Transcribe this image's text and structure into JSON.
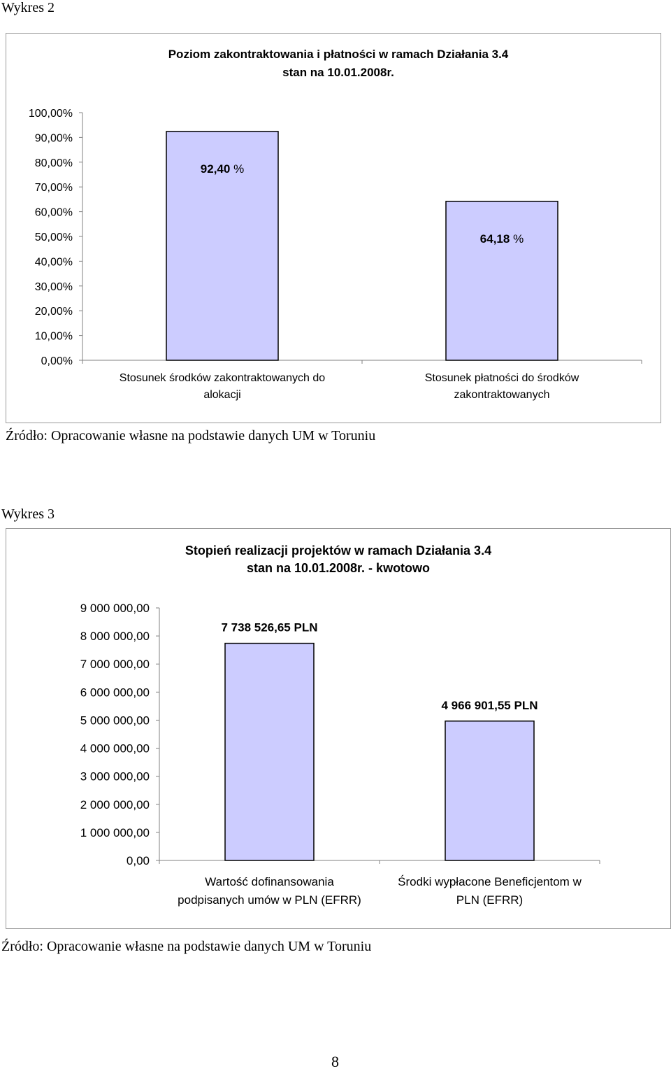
{
  "colors": {
    "bar_fill": "#ccccff",
    "bar_stroke": "#000000",
    "axis": "#808080",
    "frame": "#9a9a9a"
  },
  "charts": [
    {
      "caption": "Wykres 2",
      "source": "Źródło: Opracowanie własne na podstawie danych UM w Toruniu",
      "chart_data": {
        "type": "bar",
        "title_lines": [
          "Poziom zakontraktowania i płatności w ramach Działania 3.4",
          "stan na 10.01.2008r."
        ],
        "categories": [
          [
            "Stosunek środków zakontraktowanych do",
            "alokacji"
          ],
          [
            "Stosunek płatności do środków",
            "zakontraktowanych"
          ]
        ],
        "values": [
          92.4,
          64.18
        ],
        "data_labels": [
          {
            "number": "92,40",
            "unit": " %"
          },
          {
            "number": "64,18",
            "unit": " %"
          }
        ],
        "ylim": [
          0,
          100
        ],
        "yticks": [
          0,
          10,
          20,
          30,
          40,
          50,
          60,
          70,
          80,
          90,
          100
        ],
        "ytick_labels": [
          "0,00%",
          "10,00%",
          "20,00%",
          "30,00%",
          "40,00%",
          "50,00%",
          "60,00%",
          "70,00%",
          "80,00%",
          "90,00%",
          "100,00%"
        ],
        "grid": false,
        "legend": "none"
      }
    },
    {
      "caption": "Wykres 3",
      "source": "Źródło: Opracowanie własne na podstawie danych UM w Toruniu",
      "chart_data": {
        "type": "bar",
        "title_lines": [
          "Stopień realizacji projektów w ramach Działania 3.4",
          "stan  na 10.01.2008r. - kwotowo"
        ],
        "categories": [
          [
            "Wartość dofinansowania",
            "podpisanych umów w PLN (EFRR)"
          ],
          [
            "Środki wypłacone Beneficjentom w",
            "PLN (EFRR)"
          ]
        ],
        "values": [
          7738526.65,
          4966901.55
        ],
        "data_labels": [
          {
            "number": "7 738 526,65 PLN",
            "unit": ""
          },
          {
            "number": "4 966 901,55 PLN",
            "unit": ""
          }
        ],
        "ylim": [
          0,
          9000000
        ],
        "yticks": [
          0,
          1000000,
          2000000,
          3000000,
          4000000,
          5000000,
          6000000,
          7000000,
          8000000,
          9000000
        ],
        "ytick_labels": [
          "0,00",
          "1 000 000,00",
          "2 000 000,00",
          "3 000 000,00",
          "4 000 000,00",
          "5 000 000,00",
          "6 000 000,00",
          "7 000 000,00",
          "8 000 000,00",
          "9 000 000,00"
        ],
        "grid": false,
        "legend": "none"
      }
    }
  ],
  "page_number": "8"
}
